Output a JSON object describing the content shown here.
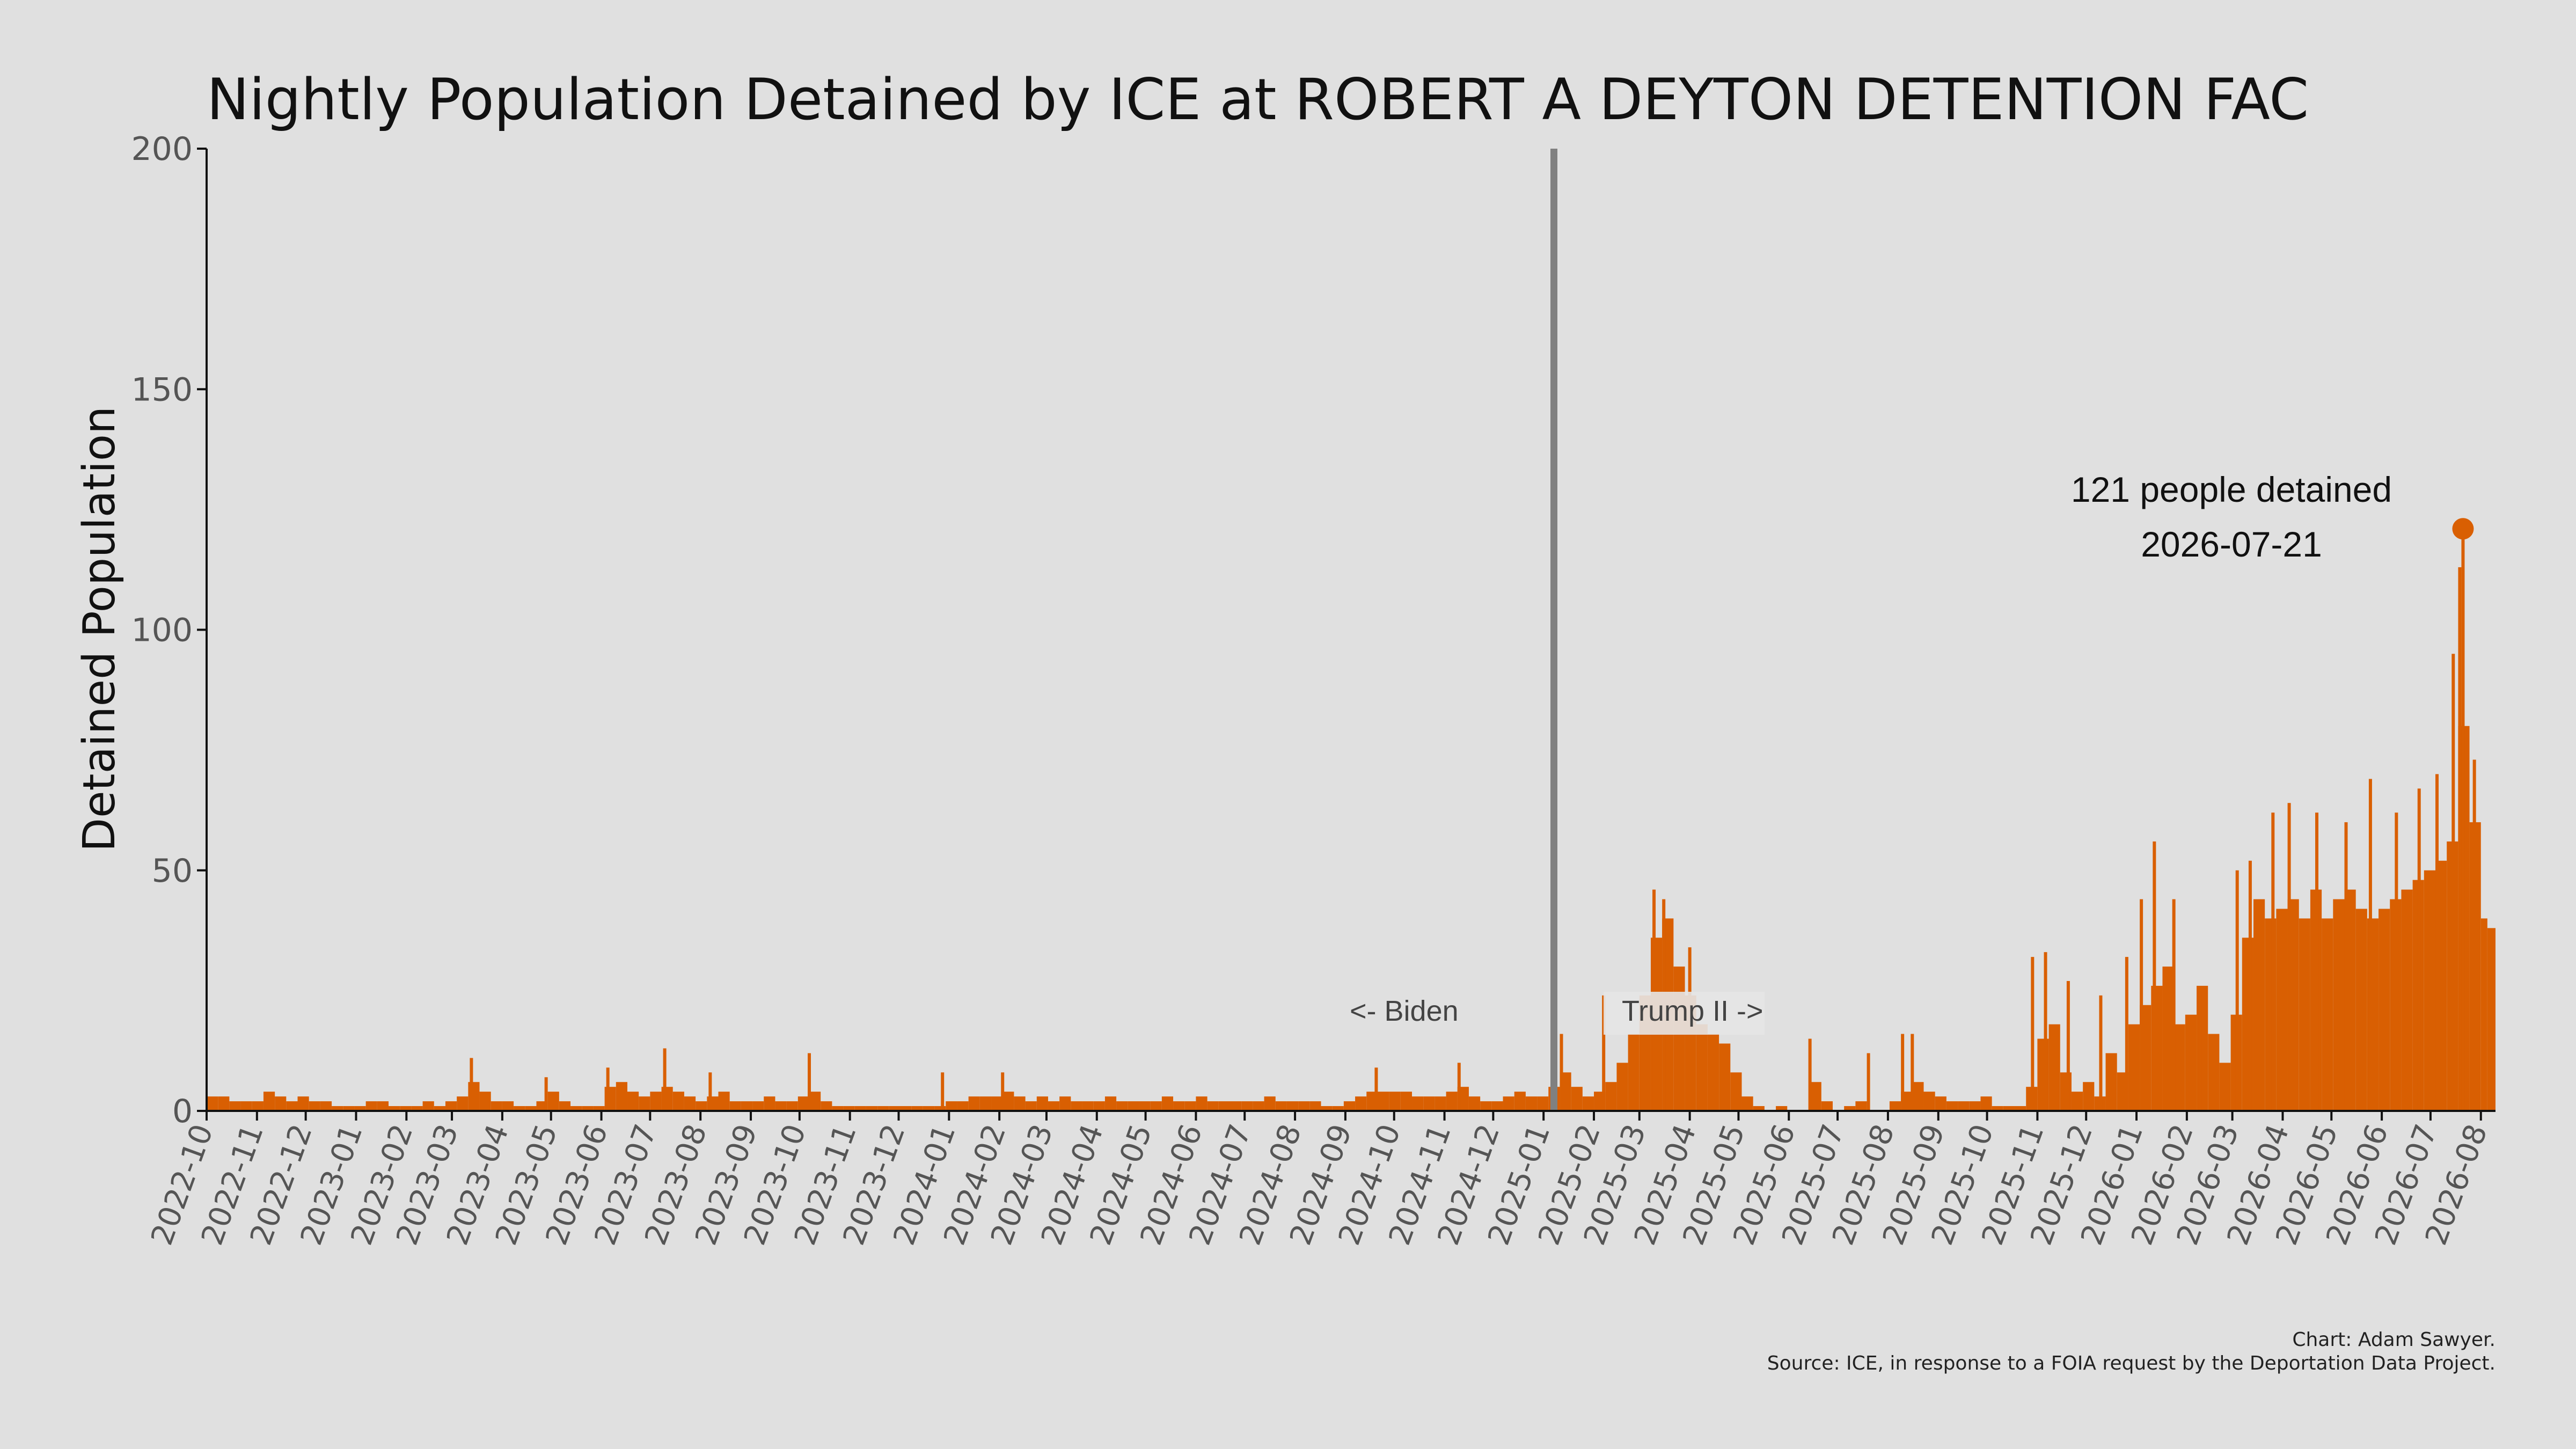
{
  "chart_data": {
    "type": "bar",
    "title": "Nightly Population Detained by ICE at ROBERT A DEYTON DETENTION FAC",
    "ylabel": "Detained Population",
    "xlabel": "",
    "ylim": [
      0,
      200
    ],
    "yticks": [
      0,
      50,
      100,
      150,
      200
    ],
    "xlim": [
      "2022-10-01",
      "2026-08-10"
    ],
    "x_tick_labels": [
      "2022-10",
      "2022-11",
      "2022-12",
      "2023-01",
      "2023-02",
      "2023-03",
      "2023-04",
      "2023-05",
      "2023-06",
      "2023-07",
      "2023-08",
      "2023-09",
      "2023-10",
      "2023-11",
      "2023-12",
      "2024-01",
      "2024-02",
      "2024-03",
      "2024-04",
      "2024-05",
      "2024-06",
      "2024-07",
      "2024-08",
      "2024-09",
      "2024-10",
      "2024-11",
      "2024-12",
      "2025-01",
      "2025-02",
      "2025-03",
      "2025-04",
      "2025-05",
      "2025-06",
      "2025-07",
      "2025-08",
      "2025-09",
      "2025-10",
      "2025-11",
      "2025-12",
      "2026-01",
      "2026-02",
      "2026-03",
      "2026-04",
      "2026-05",
      "2026-06",
      "2026-07",
      "2026-08"
    ],
    "series": [
      {
        "color": "#d95f02",
        "weekly_avg": [
          [
            "2022-10-01",
            3
          ],
          [
            "2022-10-08",
            3
          ],
          [
            "2022-10-15",
            2
          ],
          [
            "2022-10-22",
            2
          ],
          [
            "2022-10-29",
            2
          ],
          [
            "2022-11-05",
            4
          ],
          [
            "2022-11-12",
            3
          ],
          [
            "2022-11-19",
            2
          ],
          [
            "2022-11-26",
            3
          ],
          [
            "2022-12-03",
            2
          ],
          [
            "2022-12-10",
            2
          ],
          [
            "2022-12-17",
            1
          ],
          [
            "2022-12-24",
            1
          ],
          [
            "2022-12-31",
            1
          ],
          [
            "2023-01-07",
            2
          ],
          [
            "2023-01-14",
            2
          ],
          [
            "2023-01-21",
            1
          ],
          [
            "2023-01-28",
            1
          ],
          [
            "2023-02-04",
            1
          ],
          [
            "2023-02-11",
            2
          ],
          [
            "2023-02-18",
            1
          ],
          [
            "2023-02-25",
            2
          ],
          [
            "2023-03-04",
            3
          ],
          [
            "2023-03-11",
            6
          ],
          [
            "2023-03-18",
            4
          ],
          [
            "2023-03-25",
            2
          ],
          [
            "2023-04-01",
            2
          ],
          [
            "2023-04-08",
            1
          ],
          [
            "2023-04-15",
            1
          ],
          [
            "2023-04-22",
            2
          ],
          [
            "2023-04-29",
            4
          ],
          [
            "2023-05-06",
            2
          ],
          [
            "2023-05-13",
            1
          ],
          [
            "2023-05-20",
            1
          ],
          [
            "2023-05-27",
            1
          ],
          [
            "2023-06-03",
            5
          ],
          [
            "2023-06-10",
            6
          ],
          [
            "2023-06-17",
            4
          ],
          [
            "2023-06-24",
            3
          ],
          [
            "2023-07-01",
            4
          ],
          [
            "2023-07-08",
            5
          ],
          [
            "2023-07-15",
            4
          ],
          [
            "2023-07-22",
            3
          ],
          [
            "2023-07-29",
            2
          ],
          [
            "2023-08-05",
            3
          ],
          [
            "2023-08-12",
            4
          ],
          [
            "2023-08-19",
            2
          ],
          [
            "2023-08-26",
            2
          ],
          [
            "2023-09-02",
            2
          ],
          [
            "2023-09-09",
            3
          ],
          [
            "2023-09-16",
            2
          ],
          [
            "2023-09-23",
            2
          ],
          [
            "2023-09-30",
            3
          ],
          [
            "2023-10-07",
            4
          ],
          [
            "2023-10-14",
            2
          ],
          [
            "2023-10-21",
            1
          ],
          [
            "2023-10-28",
            1
          ],
          [
            "2023-11-04",
            1
          ],
          [
            "2023-11-11",
            1
          ],
          [
            "2023-11-18",
            1
          ],
          [
            "2023-11-25",
            1
          ],
          [
            "2023-12-02",
            1
          ],
          [
            "2023-12-09",
            1
          ],
          [
            "2023-12-16",
            1
          ],
          [
            "2023-12-23",
            1
          ],
          [
            "2023-12-30",
            2
          ],
          [
            "2024-01-06",
            2
          ],
          [
            "2024-01-13",
            3
          ],
          [
            "2024-01-20",
            3
          ],
          [
            "2024-01-27",
            3
          ],
          [
            "2024-02-03",
            4
          ],
          [
            "2024-02-10",
            3
          ],
          [
            "2024-02-17",
            2
          ],
          [
            "2024-02-24",
            3
          ],
          [
            "2024-03-02",
            2
          ],
          [
            "2024-03-09",
            3
          ],
          [
            "2024-03-16",
            2
          ],
          [
            "2024-03-23",
            2
          ],
          [
            "2024-03-30",
            2
          ],
          [
            "2024-04-06",
            3
          ],
          [
            "2024-04-13",
            2
          ],
          [
            "2024-04-20",
            2
          ],
          [
            "2024-04-27",
            2
          ],
          [
            "2024-05-04",
            2
          ],
          [
            "2024-05-11",
            3
          ],
          [
            "2024-05-18",
            2
          ],
          [
            "2024-05-25",
            2
          ],
          [
            "2024-06-01",
            3
          ],
          [
            "2024-06-08",
            2
          ],
          [
            "2024-06-15",
            2
          ],
          [
            "2024-06-22",
            2
          ],
          [
            "2024-06-29",
            2
          ],
          [
            "2024-07-06",
            2
          ],
          [
            "2024-07-13",
            3
          ],
          [
            "2024-07-20",
            2
          ],
          [
            "2024-07-27",
            2
          ],
          [
            "2024-08-03",
            2
          ],
          [
            "2024-08-10",
            2
          ],
          [
            "2024-08-17",
            1
          ],
          [
            "2024-08-24",
            1
          ],
          [
            "2024-08-31",
            2
          ],
          [
            "2024-09-07",
            3
          ],
          [
            "2024-09-14",
            4
          ],
          [
            "2024-09-21",
            4
          ],
          [
            "2024-09-28",
            4
          ],
          [
            "2024-10-05",
            4
          ],
          [
            "2024-10-12",
            3
          ],
          [
            "2024-10-19",
            3
          ],
          [
            "2024-10-26",
            3
          ],
          [
            "2024-11-02",
            4
          ],
          [
            "2024-11-09",
            5
          ],
          [
            "2024-11-16",
            3
          ],
          [
            "2024-11-23",
            2
          ],
          [
            "2024-11-30",
            2
          ],
          [
            "2024-12-07",
            3
          ],
          [
            "2024-12-14",
            4
          ],
          [
            "2024-12-21",
            3
          ],
          [
            "2024-12-28",
            3
          ],
          [
            "2025-01-04",
            5
          ],
          [
            "2025-01-11",
            8
          ],
          [
            "2025-01-18",
            5
          ],
          [
            "2025-01-25",
            3
          ],
          [
            "2025-02-01",
            4
          ],
          [
            "2025-02-08",
            6
          ],
          [
            "2025-02-15",
            10
          ],
          [
            "2025-02-22",
            16
          ],
          [
            "2025-03-01",
            24
          ],
          [
            "2025-03-08",
            36
          ],
          [
            "2025-03-15",
            40
          ],
          [
            "2025-03-22",
            30
          ],
          [
            "2025-03-29",
            24
          ],
          [
            "2025-04-05",
            18
          ],
          [
            "2025-04-12",
            16
          ],
          [
            "2025-04-19",
            14
          ],
          [
            "2025-04-26",
            8
          ],
          [
            "2025-05-03",
            3
          ],
          [
            "2025-05-10",
            1
          ],
          [
            "2025-05-17",
            0
          ],
          [
            "2025-05-24",
            1
          ],
          [
            "2025-05-31",
            0
          ],
          [
            "2025-06-07",
            0
          ],
          [
            "2025-06-14",
            6
          ],
          [
            "2025-06-21",
            2
          ],
          [
            "2025-06-28",
            0
          ],
          [
            "2025-07-05",
            1
          ],
          [
            "2025-07-12",
            2
          ],
          [
            "2025-07-19",
            0
          ],
          [
            "2025-07-26",
            0
          ],
          [
            "2025-08-02",
            2
          ],
          [
            "2025-08-09",
            4
          ],
          [
            "2025-08-16",
            6
          ],
          [
            "2025-08-23",
            4
          ],
          [
            "2025-08-30",
            3
          ],
          [
            "2025-09-06",
            2
          ],
          [
            "2025-09-13",
            2
          ],
          [
            "2025-09-20",
            2
          ],
          [
            "2025-09-27",
            3
          ],
          [
            "2025-10-04",
            1
          ],
          [
            "2025-10-11",
            1
          ],
          [
            "2025-10-18",
            1
          ],
          [
            "2025-10-25",
            5
          ],
          [
            "2025-11-01",
            15
          ],
          [
            "2025-11-08",
            18
          ],
          [
            "2025-11-15",
            8
          ],
          [
            "2025-11-22",
            4
          ],
          [
            "2025-11-29",
            6
          ],
          [
            "2025-12-06",
            3
          ],
          [
            "2025-12-13",
            12
          ],
          [
            "2025-12-20",
            8
          ],
          [
            "2025-12-27",
            18
          ],
          [
            "2026-01-03",
            22
          ],
          [
            "2026-01-10",
            26
          ],
          [
            "2026-01-17",
            30
          ],
          [
            "2026-01-24",
            18
          ],
          [
            "2026-01-31",
            20
          ],
          [
            "2026-02-07",
            26
          ],
          [
            "2026-02-14",
            16
          ],
          [
            "2026-02-21",
            10
          ],
          [
            "2026-02-28",
            20
          ],
          [
            "2026-03-07",
            36
          ],
          [
            "2026-03-14",
            44
          ],
          [
            "2026-03-21",
            40
          ],
          [
            "2026-03-28",
            42
          ],
          [
            "2026-04-04",
            44
          ],
          [
            "2026-04-11",
            40
          ],
          [
            "2026-04-18",
            46
          ],
          [
            "2026-04-25",
            40
          ],
          [
            "2026-05-02",
            44
          ],
          [
            "2026-05-09",
            46
          ],
          [
            "2026-05-16",
            42
          ],
          [
            "2026-05-23",
            40
          ],
          [
            "2026-05-30",
            42
          ],
          [
            "2026-06-06",
            44
          ],
          [
            "2026-06-13",
            46
          ],
          [
            "2026-06-20",
            48
          ],
          [
            "2026-06-27",
            50
          ],
          [
            "2026-07-04",
            52
          ],
          [
            "2026-07-11",
            56
          ],
          [
            "2026-07-18",
            80
          ],
          [
            "2026-07-25",
            60
          ],
          [
            "2026-08-01",
            40
          ],
          [
            "2026-08-05",
            38
          ]
        ],
        "spikes": [
          [
            "2023-03-13",
            11
          ],
          [
            "2023-04-28",
            7
          ],
          [
            "2023-06-05",
            9
          ],
          [
            "2023-07-10",
            13
          ],
          [
            "2023-08-07",
            8
          ],
          [
            "2023-10-07",
            12
          ],
          [
            "2023-12-28",
            8
          ],
          [
            "2024-02-03",
            8
          ],
          [
            "2024-09-20",
            9
          ],
          [
            "2024-11-10",
            10
          ],
          [
            "2025-01-12",
            16
          ],
          [
            "2025-02-07",
            24
          ],
          [
            "2025-03-10",
            46
          ],
          [
            "2025-03-16",
            44
          ],
          [
            "2025-04-01",
            34
          ],
          [
            "2025-06-14",
            15
          ],
          [
            "2025-07-20",
            12
          ],
          [
            "2025-08-10",
            16
          ],
          [
            "2025-08-16",
            16
          ],
          [
            "2025-10-29",
            32
          ],
          [
            "2025-11-06",
            33
          ],
          [
            "2025-11-20",
            27
          ],
          [
            "2025-12-10",
            24
          ],
          [
            "2025-12-26",
            32
          ],
          [
            "2026-01-04",
            44
          ],
          [
            "2026-01-12",
            56
          ],
          [
            "2026-01-24",
            44
          ],
          [
            "2026-02-09",
            25
          ],
          [
            "2026-03-04",
            50
          ],
          [
            "2026-03-12",
            52
          ],
          [
            "2026-03-26",
            62
          ],
          [
            "2026-04-05",
            64
          ],
          [
            "2026-04-22",
            62
          ],
          [
            "2026-05-10",
            60
          ],
          [
            "2026-05-25",
            69
          ],
          [
            "2026-06-10",
            62
          ],
          [
            "2026-06-24",
            67
          ],
          [
            "2026-07-05",
            70
          ],
          [
            "2026-07-15",
            95
          ],
          [
            "2026-07-19",
            113
          ],
          [
            "2026-07-21",
            121
          ],
          [
            "2026-07-28",
            73
          ]
        ]
      }
    ],
    "peak": {
      "date": "2026-07-21",
      "value": 121
    },
    "annotations": {
      "peak_label_line1": "121 people detained",
      "peak_label_line2": "2026-07-21",
      "divider_date": "2025-01-20",
      "left_era": "<- Biden",
      "right_era": "Trump II ->"
    },
    "credits": {
      "line1": "Chart: Adam Sawyer.",
      "line2": "Source: ICE, in response to a FOIA request by the Deportation Data Project."
    },
    "grid": false,
    "legend": "none"
  }
}
